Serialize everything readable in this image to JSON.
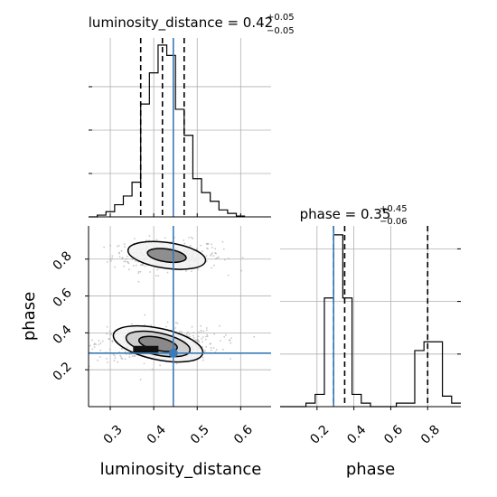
{
  "chart_data": {
    "type": "corner",
    "parameters": [
      "luminosity_distance",
      "phase"
    ],
    "truth": {
      "luminosity_distance": 0.445,
      "phase": 0.29
    },
    "colors": {
      "truth": "#3a7ab8",
      "hist": "#000000",
      "grid": "#b0b0b0",
      "samples": "#9a9a9a"
    },
    "grid": true,
    "panels": [
      {
        "id": "hist_luminosity_distance",
        "type": "histogram",
        "title": {
          "prefix": "luminosity_distance = 0.42",
          "sup": "+0.05",
          "sub": "−0.05"
        },
        "xlim": [
          0.25,
          0.67
        ],
        "quantiles": [
          0.37,
          0.42,
          0.47
        ],
        "bins": [
          {
            "x0": 0.25,
            "x1": 0.27,
            "v": 0.0
          },
          {
            "x0": 0.27,
            "x1": 0.29,
            "v": 0.01
          },
          {
            "x0": 0.29,
            "x1": 0.31,
            "v": 0.03
          },
          {
            "x0": 0.31,
            "x1": 0.33,
            "v": 0.07
          },
          {
            "x0": 0.33,
            "x1": 0.35,
            "v": 0.12
          },
          {
            "x0": 0.35,
            "x1": 0.37,
            "v": 0.2
          },
          {
            "x0": 0.37,
            "x1": 0.39,
            "v": 0.65
          },
          {
            "x0": 0.39,
            "x1": 0.41,
            "v": 0.83
          },
          {
            "x0": 0.41,
            "x1": 0.43,
            "v": 0.99
          },
          {
            "x0": 0.43,
            "x1": 0.45,
            "v": 0.93
          },
          {
            "x0": 0.45,
            "x1": 0.47,
            "v": 0.62
          },
          {
            "x0": 0.47,
            "x1": 0.49,
            "v": 0.47
          },
          {
            "x0": 0.49,
            "x1": 0.51,
            "v": 0.22
          },
          {
            "x0": 0.51,
            "x1": 0.53,
            "v": 0.14
          },
          {
            "x0": 0.53,
            "x1": 0.55,
            "v": 0.09
          },
          {
            "x0": 0.55,
            "x1": 0.57,
            "v": 0.04
          },
          {
            "x0": 0.57,
            "x1": 0.59,
            "v": 0.02
          },
          {
            "x0": 0.59,
            "x1": 0.61,
            "v": 0.005
          }
        ]
      },
      {
        "id": "hist_phase",
        "type": "histogram",
        "title": {
          "prefix": "phase = 0.35",
          "sup": "+0.45",
          "sub": "−0.06"
        },
        "xlim": [
          0.0,
          0.98
        ],
        "quantiles": [
          0.29,
          0.35,
          0.8
        ],
        "xticks": [
          "0.2",
          "0.4",
          "0.6",
          "0.8"
        ],
        "xtick_values": [
          0.2,
          0.4,
          0.6,
          0.8
        ],
        "xlabel": "phase",
        "bins": [
          {
            "x0": 0.0,
            "x1": 0.14,
            "v": 0.0
          },
          {
            "x0": 0.14,
            "x1": 0.19,
            "v": 0.02
          },
          {
            "x0": 0.19,
            "x1": 0.24,
            "v": 0.07
          },
          {
            "x0": 0.24,
            "x1": 0.29,
            "v": 0.62
          },
          {
            "x0": 0.29,
            "x1": 0.34,
            "v": 0.98
          },
          {
            "x0": 0.34,
            "x1": 0.39,
            "v": 0.62
          },
          {
            "x0": 0.39,
            "x1": 0.44,
            "v": 0.07
          },
          {
            "x0": 0.44,
            "x1": 0.49,
            "v": 0.02
          },
          {
            "x0": 0.49,
            "x1": 0.63,
            "v": 0.0
          },
          {
            "x0": 0.63,
            "x1": 0.73,
            "v": 0.02
          },
          {
            "x0": 0.73,
            "x1": 0.78,
            "v": 0.32
          },
          {
            "x0": 0.78,
            "x1": 0.83,
            "v": 0.37
          },
          {
            "x0": 0.83,
            "x1": 0.88,
            "v": 0.37
          },
          {
            "x0": 0.88,
            "x1": 0.93,
            "v": 0.06
          },
          {
            "x0": 0.93,
            "x1": 0.98,
            "v": 0.02
          }
        ]
      },
      {
        "id": "joint_luminosity_distance_phase",
        "type": "2d-density",
        "xlim": [
          0.25,
          0.67
        ],
        "ylim": [
          0.0,
          0.98
        ],
        "xticks": [
          "0.3",
          "0.4",
          "0.5",
          "0.6"
        ],
        "xtick_values": [
          0.3,
          0.4,
          0.5,
          0.6
        ],
        "yticks": [
          "0.2",
          "0.4",
          "0.6",
          "0.8"
        ],
        "ytick_values": [
          0.2,
          0.4,
          0.6,
          0.8
        ],
        "xlabel": "luminosity_distance",
        "ylabel": "phase",
        "modes": [
          {
            "cx": 0.43,
            "cy": 0.82,
            "sx": 0.045,
            "sy": 0.035,
            "n": 320
          },
          {
            "cx": 0.41,
            "cy": 0.34,
            "sx": 0.05,
            "sy": 0.04,
            "n": 520
          }
        ],
        "contours": [
          {
            "mode": 0,
            "rx": 0.09,
            "ry": 0.07,
            "level": "outer"
          },
          {
            "mode": 0,
            "rx": 0.045,
            "ry": 0.035,
            "level": "inner"
          },
          {
            "mode": 1,
            "rx": 0.105,
            "ry": 0.085,
            "level": "outer"
          },
          {
            "mode": 1,
            "rx": 0.075,
            "ry": 0.06,
            "level": "mid"
          },
          {
            "mode": 1,
            "rx": 0.045,
            "ry": 0.035,
            "level": "inner"
          }
        ]
      }
    ]
  }
}
